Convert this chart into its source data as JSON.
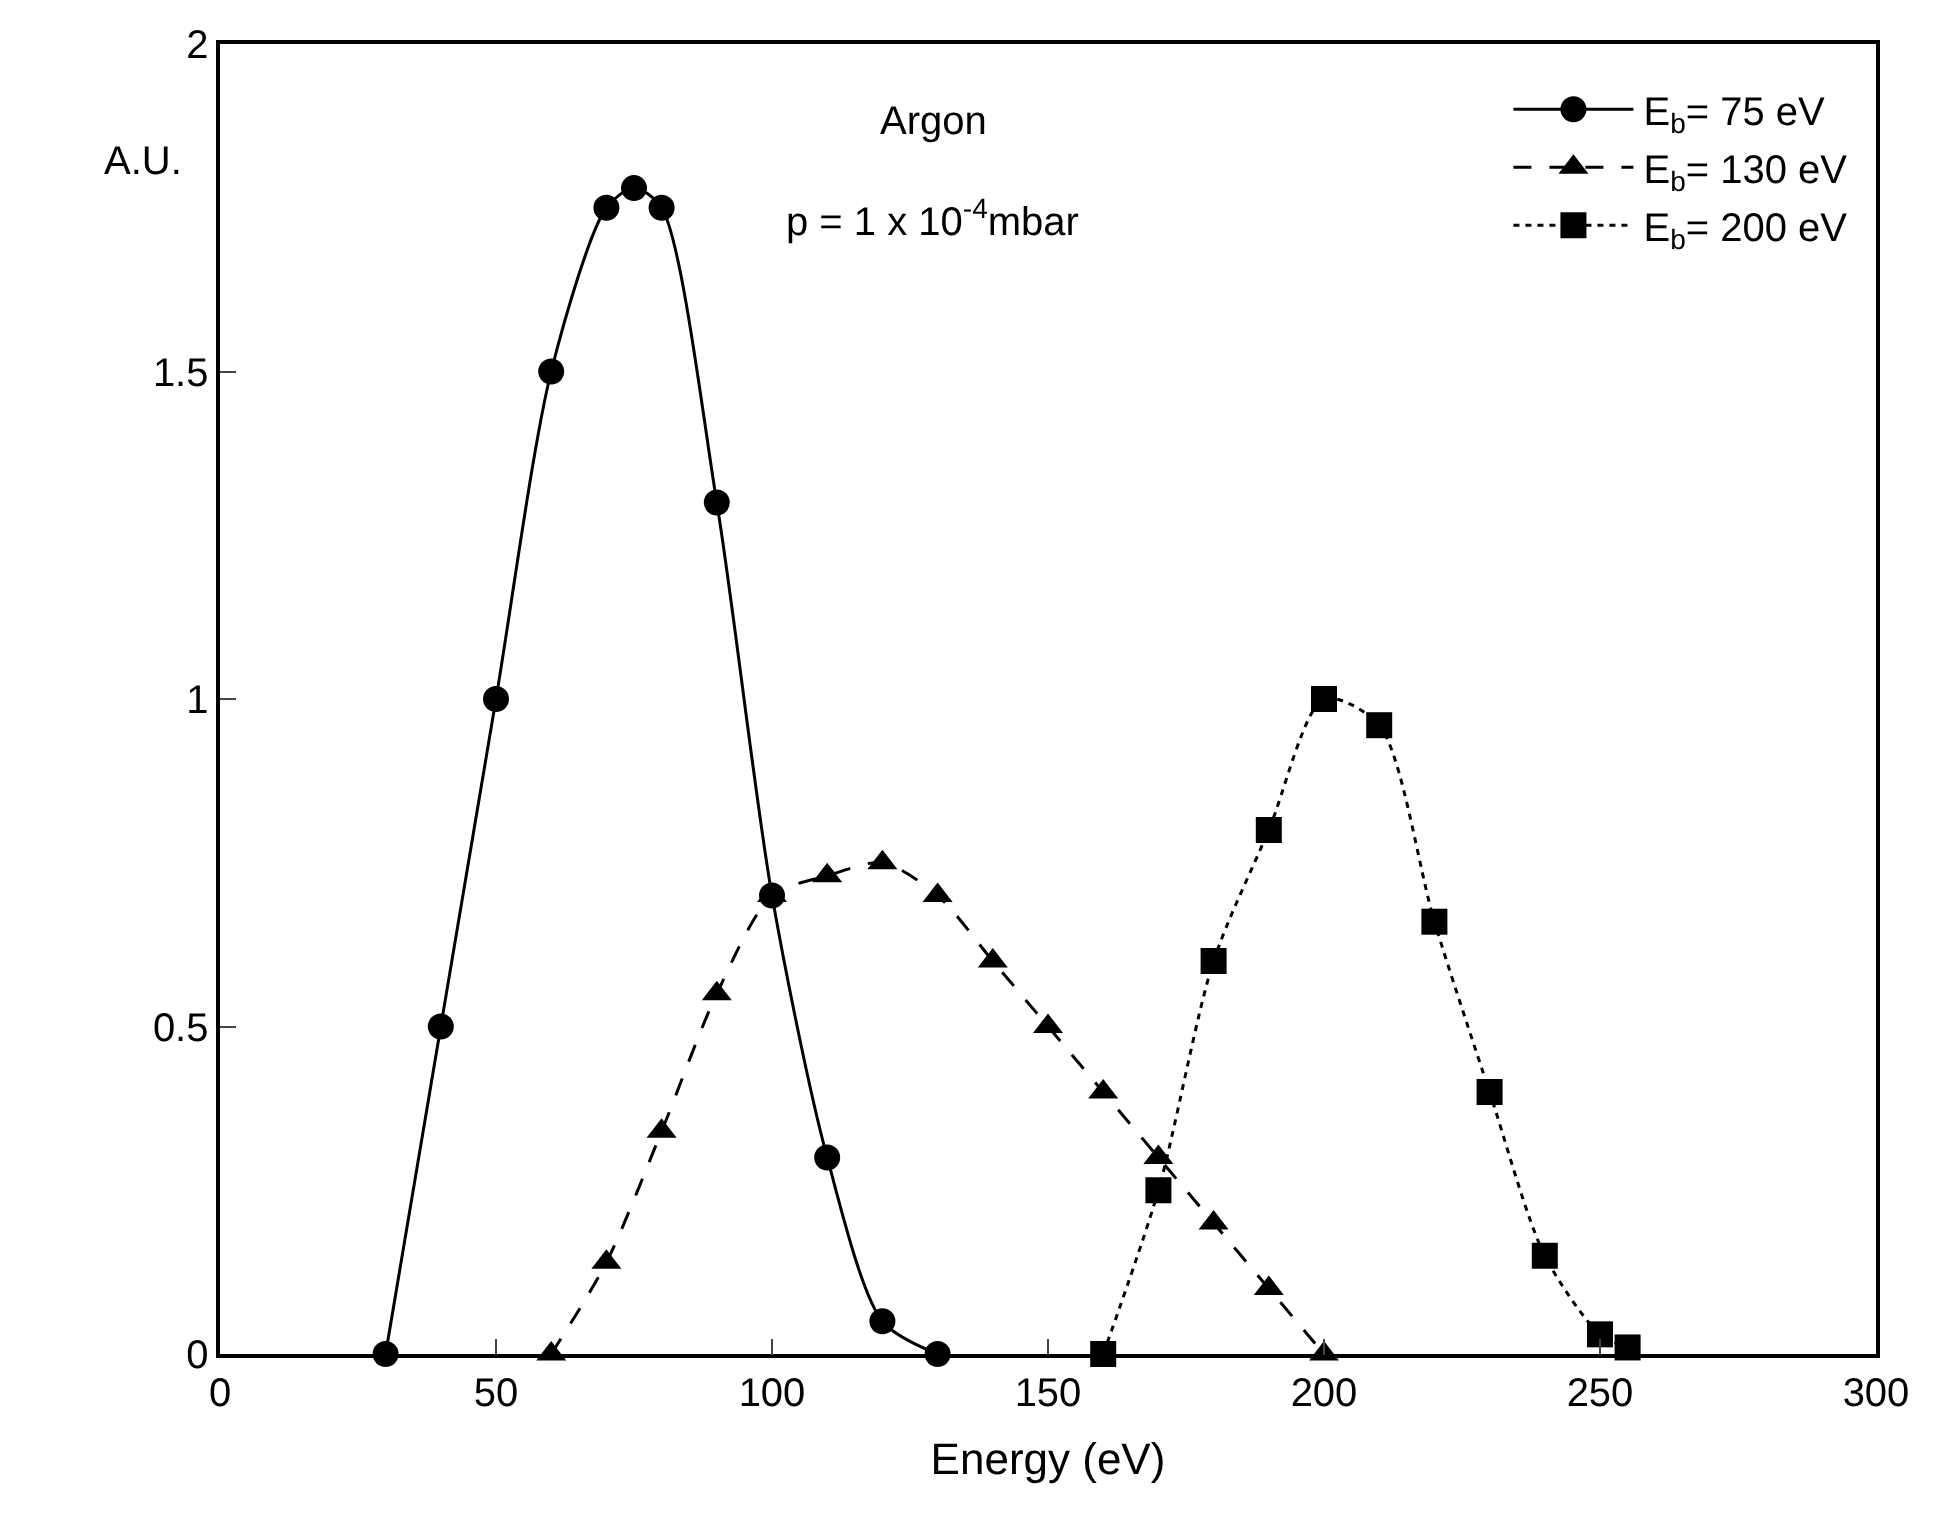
{
  "chart_data": {
    "type": "line",
    "xlabel": "Energy (eV)",
    "ylabel": "A.U.",
    "annotations": [
      "Argon",
      "p = 1 x 10$^{-4}$mbar"
    ],
    "xlim": [
      0,
      300
    ],
    "xticks": [
      0,
      50,
      100,
      150,
      200,
      250,
      300
    ],
    "ylim": [
      0,
      2
    ],
    "yticks": [
      0,
      0.5,
      1,
      1.5,
      2
    ],
    "legend": "top right",
    "series": [
      {
        "name": "E$_{b}$= 75 eV",
        "color": "#000000",
        "marker": "circle",
        "line_style": "solid",
        "x": [
          30,
          40,
          50,
          60,
          70,
          75,
          80,
          90,
          100,
          110,
          120,
          130
        ],
        "values": [
          0,
          0.5,
          1.0,
          1.5,
          1.75,
          1.78,
          1.75,
          1.3,
          0.7,
          0.3,
          0.05,
          0
        ]
      },
      {
        "name": "E$_{b}$= 130 eV",
        "color": "#000000",
        "marker": "triangle",
        "line_style": "dashed",
        "x": [
          60,
          70,
          80,
          90,
          100,
          110,
          120,
          130,
          140,
          150,
          160,
          170,
          180,
          190,
          200
        ],
        "values": [
          0,
          0.14,
          0.34,
          0.55,
          0.7,
          0.73,
          0.75,
          0.7,
          0.6,
          0.5,
          0.4,
          0.3,
          0.2,
          0.1,
          0
        ]
      },
      {
        "name": "E$_{b}$= 200 eV",
        "color": "#000000",
        "marker": "square",
        "line_style": "dotted",
        "x": [
          160,
          170,
          180,
          190,
          200,
          210,
          220,
          230,
          240,
          250,
          255
        ],
        "values": [
          0,
          0.25,
          0.6,
          0.8,
          1.0,
          0.96,
          0.66,
          0.4,
          0.15,
          0.03,
          0.01
        ]
      }
    ]
  }
}
